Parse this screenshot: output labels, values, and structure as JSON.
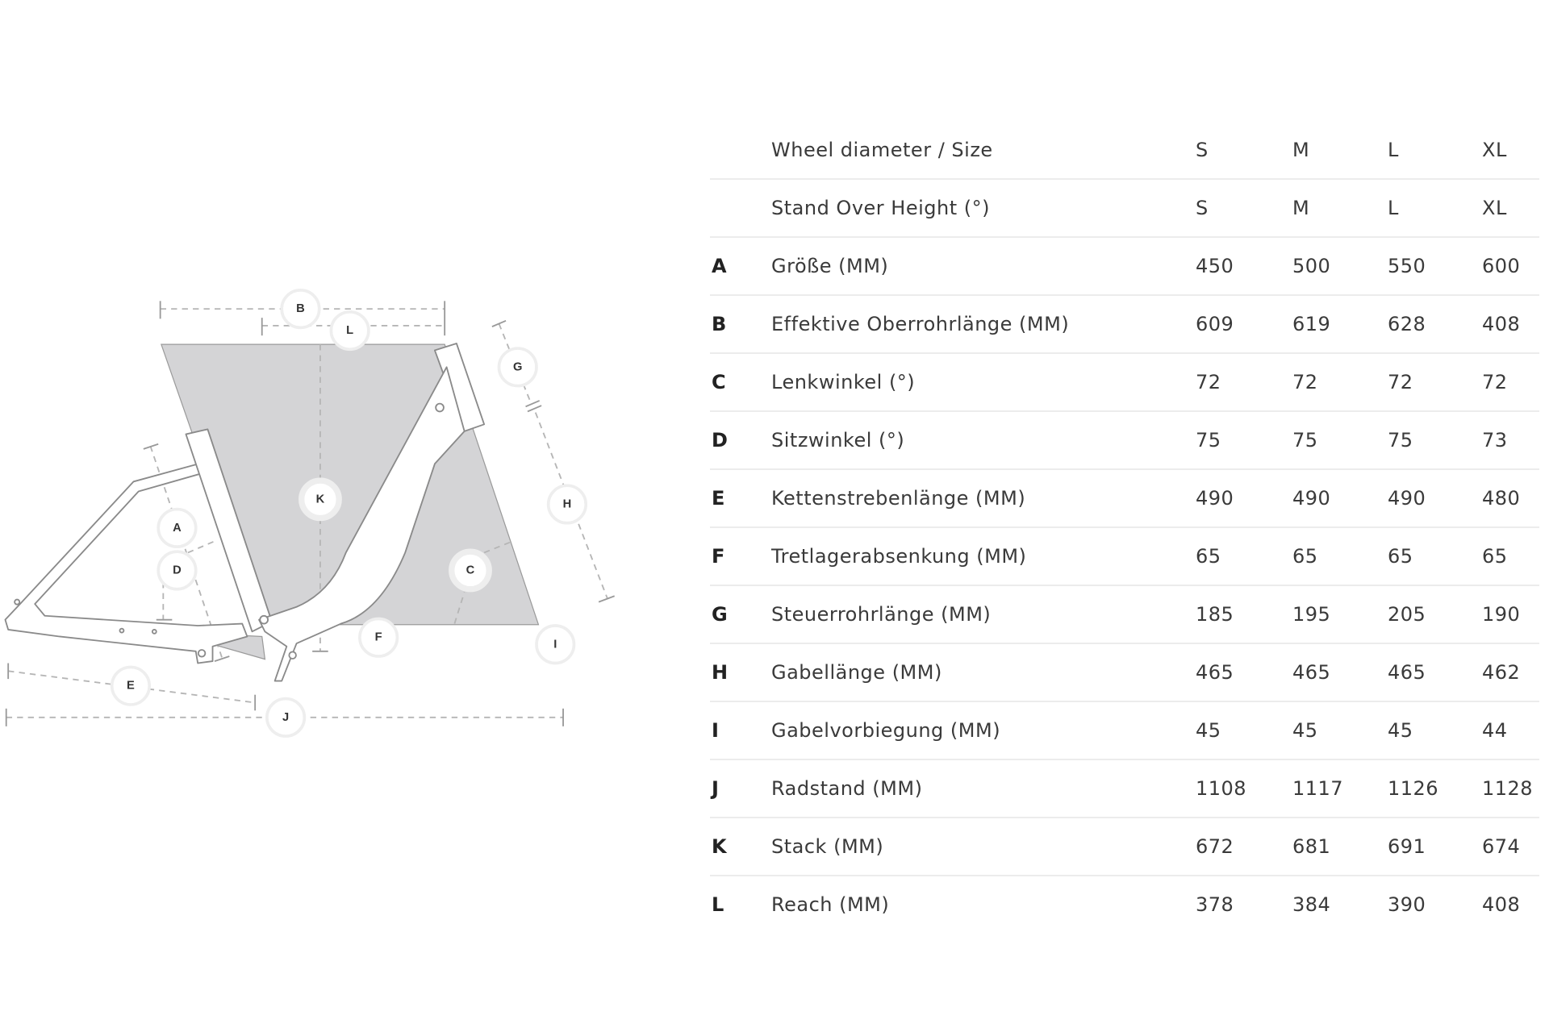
{
  "diagram": {
    "labels": [
      "A",
      "B",
      "C",
      "D",
      "E",
      "F",
      "G",
      "H",
      "I",
      "J",
      "K",
      "L"
    ],
    "colors": {
      "shade": "#d4d4d6",
      "frame_outline": "#8a8a8a",
      "dash": "#b5b5b5"
    }
  },
  "table": {
    "rows": [
      {
        "letter": "",
        "name": "Wheel diameter / Size",
        "values": [
          "S",
          "M",
          "L",
          "XL"
        ]
      },
      {
        "letter": "",
        "name": "Stand Over Height (°)",
        "values": [
          "S",
          "M",
          "L",
          "XL"
        ]
      },
      {
        "letter": "A",
        "name": "Größe (MM)",
        "values": [
          "450",
          "500",
          "550",
          "600"
        ]
      },
      {
        "letter": "B",
        "name": "Effektive Oberrohrlänge (MM)",
        "values": [
          "609",
          "619",
          "628",
          "408"
        ]
      },
      {
        "letter": "C",
        "name": "Lenkwinkel (°)",
        "values": [
          "72",
          "72",
          "72",
          "72"
        ]
      },
      {
        "letter": "D",
        "name": "Sitzwinkel (°)",
        "values": [
          "75",
          "75",
          "75",
          "73"
        ]
      },
      {
        "letter": "E",
        "name": "Kettenstrebenlänge (MM)",
        "values": [
          "490",
          "490",
          "490",
          "480"
        ]
      },
      {
        "letter": "F",
        "name": "Tretlagerabsenkung (MM)",
        "values": [
          "65",
          "65",
          "65",
          "65"
        ]
      },
      {
        "letter": "G",
        "name": "Steuerrohrlänge (MM)",
        "values": [
          "185",
          "195",
          "205",
          "190"
        ]
      },
      {
        "letter": "H",
        "name": "Gabellänge (MM)",
        "values": [
          "465",
          "465",
          "465",
          "462"
        ]
      },
      {
        "letter": "I",
        "name": "Gabelvorbiegung (MM)",
        "values": [
          "45",
          "45",
          "45",
          "44"
        ]
      },
      {
        "letter": "J",
        "name": "Radstand (MM)",
        "values": [
          "1108",
          "1117",
          "1126",
          "1128"
        ]
      },
      {
        "letter": "K",
        "name": "Stack (MM)",
        "values": [
          "672",
          "681",
          "691",
          "674"
        ]
      },
      {
        "letter": "L",
        "name": "Reach (MM)",
        "values": [
          "378",
          "384",
          "390",
          "408"
        ]
      }
    ]
  }
}
